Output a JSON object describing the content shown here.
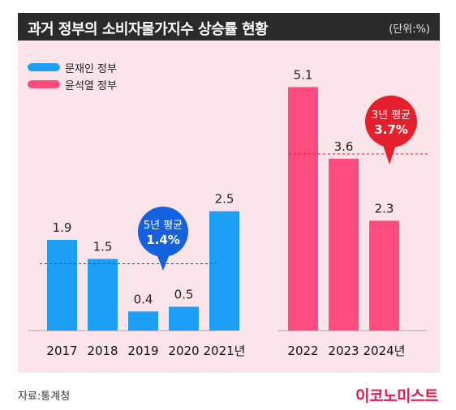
{
  "header": {
    "title": "과거 정부의 소비자물가지수 상승률 현황",
    "unit": "(단위:%)"
  },
  "legend": [
    {
      "label": "문재인 정부",
      "color": "#1c9ff5"
    },
    {
      "label": "윤석열 정부",
      "color": "#ff4b7d"
    }
  ],
  "chart_data": {
    "type": "bar",
    "ylim": [
      0,
      5.6
    ],
    "groups": [
      {
        "name": "문재인 정부",
        "color": "#1c9ff5",
        "categories": [
          "2017",
          "2018",
          "2019",
          "2020",
          "2021년"
        ],
        "values": [
          1.9,
          1.5,
          0.4,
          0.5,
          2.5
        ],
        "value_labels": [
          "1.9",
          "1.5",
          "0.4",
          "0.5",
          "2.5"
        ],
        "average": 1.4,
        "average_label_line1": "5년 평균",
        "average_label_line2": "1.4%",
        "average_color": "#1562e0"
      },
      {
        "name": "윤석열 정부",
        "color": "#ff4b7d",
        "categories": [
          "2022",
          "2023",
          "2024년"
        ],
        "values": [
          5.1,
          3.6,
          2.3
        ],
        "value_labels": [
          "5.1",
          "3.6",
          "2.3"
        ],
        "average": 3.7,
        "average_label_line1": "3년 평균",
        "average_label_line2": "3.7%",
        "average_color": "#e51f2c"
      }
    ]
  },
  "footer": {
    "source": "자료:통계청",
    "logo": "이코노미스트"
  }
}
